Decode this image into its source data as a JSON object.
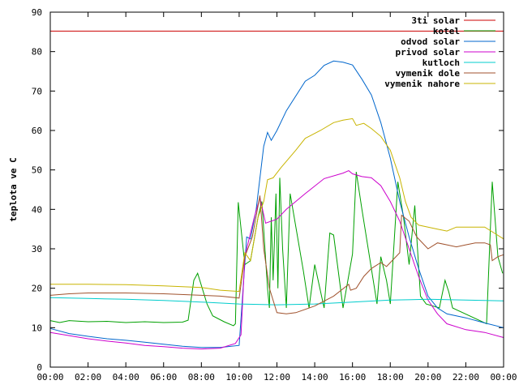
{
  "chart_data": {
    "type": "line",
    "title": "",
    "xlabel": "",
    "ylabel": "teplota ve C",
    "xlim": [
      0,
      24
    ],
    "ylim": [
      0,
      90
    ],
    "x_ticks": [
      0,
      2,
      4,
      6,
      8,
      10,
      12,
      14,
      16,
      18,
      20,
      22,
      24
    ],
    "x_tick_labels": [
      "00:00",
      "02:00",
      "04:00",
      "06:00",
      "08:00",
      "10:00",
      "12:00",
      "14:00",
      "16:00",
      "18:00",
      "20:00",
      "22:00",
      "00:00"
    ],
    "y_ticks": [
      0,
      10,
      20,
      30,
      40,
      50,
      60,
      70,
      80,
      90
    ],
    "y_tick_labels": [
      "0",
      "10",
      "20",
      "30",
      "40",
      "50",
      "60",
      "70",
      "80",
      "90"
    ],
    "grid": false,
    "legend": "top-right",
    "series": [
      {
        "name": "3ti solar",
        "color": "#cc0000",
        "points": [
          [
            0,
            85.2
          ],
          [
            24,
            85.2
          ]
        ]
      },
      {
        "name": "kotel",
        "color": "#00a000",
        "points": [
          [
            0,
            11.8
          ],
          [
            0.5,
            11.3
          ],
          [
            1,
            11.8
          ],
          [
            2,
            11.5
          ],
          [
            3,
            11.6
          ],
          [
            4,
            11.3
          ],
          [
            5,
            11.5
          ],
          [
            6,
            11.3
          ],
          [
            7,
            11.4
          ],
          [
            7.3,
            11.9
          ],
          [
            7.6,
            22
          ],
          [
            7.8,
            23.8
          ],
          [
            8.3,
            16
          ],
          [
            8.6,
            13
          ],
          [
            9.2,
            11.5
          ],
          [
            9.7,
            10.5
          ],
          [
            9.8,
            11
          ],
          [
            9.95,
            41.8
          ],
          [
            10.3,
            26
          ],
          [
            10.6,
            27
          ],
          [
            11,
            38
          ],
          [
            11.2,
            42
          ],
          [
            11.5,
            20
          ],
          [
            11.6,
            15
          ],
          [
            11.7,
            38
          ],
          [
            11.8,
            22
          ],
          [
            11.95,
            44
          ],
          [
            12.05,
            20
          ],
          [
            12.15,
            48
          ],
          [
            12.3,
            30
          ],
          [
            12.5,
            15
          ],
          [
            12.7,
            44
          ],
          [
            13.4,
            24.4
          ],
          [
            13.7,
            15
          ],
          [
            14,
            26
          ],
          [
            14.5,
            15
          ],
          [
            14.8,
            34
          ],
          [
            15,
            33.5
          ],
          [
            15.5,
            15
          ],
          [
            16,
            28.7
          ],
          [
            16.2,
            49.5
          ],
          [
            16.5,
            40
          ],
          [
            16.9,
            28
          ],
          [
            17.3,
            16
          ],
          [
            17.5,
            28
          ],
          [
            17.8,
            22
          ],
          [
            18,
            16
          ],
          [
            18.4,
            47
          ],
          [
            18.7,
            38
          ],
          [
            19,
            26
          ],
          [
            19.3,
            41
          ],
          [
            19.6,
            18
          ],
          [
            19.9,
            16
          ],
          [
            20.6,
            15
          ],
          [
            20.9,
            22
          ],
          [
            21.1,
            19
          ],
          [
            21.3,
            15
          ],
          [
            23.1,
            11
          ],
          [
            23.4,
            47
          ],
          [
            23.7,
            28
          ],
          [
            23.95,
            23.8
          ]
        ]
      },
      {
        "name": "odvod solar",
        "color": "#0066cc",
        "points": [
          [
            0,
            9.8
          ],
          [
            1,
            8.5
          ],
          [
            2,
            7.8
          ],
          [
            3,
            7.2
          ],
          [
            4,
            6.8
          ],
          [
            5,
            6.3
          ],
          [
            6,
            5.8
          ],
          [
            7,
            5.3
          ],
          [
            8,
            5.0
          ],
          [
            9,
            5.0
          ],
          [
            10,
            5.5
          ],
          [
            10.4,
            33
          ],
          [
            10.6,
            32.5
          ],
          [
            10.9,
            40
          ],
          [
            11.3,
            56
          ],
          [
            11.5,
            59.5
          ],
          [
            11.7,
            57.5
          ],
          [
            12,
            60
          ],
          [
            12.5,
            65
          ],
          [
            13.5,
            72.5
          ],
          [
            14,
            74
          ],
          [
            14.5,
            76.5
          ],
          [
            15,
            77.6
          ],
          [
            15.5,
            77.3
          ],
          [
            16,
            76.6
          ],
          [
            16.5,
            73
          ],
          [
            17,
            69
          ],
          [
            17.5,
            62
          ],
          [
            18,
            53
          ],
          [
            18.5,
            42
          ],
          [
            19,
            33
          ],
          [
            19.5,
            25
          ],
          [
            20,
            18
          ],
          [
            20.5,
            15
          ],
          [
            21,
            13.5
          ],
          [
            22,
            12.5
          ],
          [
            23,
            11.2
          ],
          [
            24,
            10
          ]
        ]
      },
      {
        "name": "privod solar",
        "color": "#cc00cc",
        "points": [
          [
            0,
            8.8
          ],
          [
            1,
            8
          ],
          [
            2,
            7.2
          ],
          [
            3,
            6.6
          ],
          [
            4,
            6.1
          ],
          [
            5,
            5.5
          ],
          [
            6,
            5.2
          ],
          [
            7,
            4.8
          ],
          [
            8,
            4.6
          ],
          [
            9,
            4.8
          ],
          [
            9.8,
            6
          ],
          [
            10.1,
            8.2
          ],
          [
            10.3,
            28
          ],
          [
            10.8,
            38
          ],
          [
            11.1,
            43
          ],
          [
            11.4,
            36.5
          ],
          [
            12,
            37.5
          ],
          [
            12.5,
            40
          ],
          [
            13.5,
            44
          ],
          [
            14.5,
            47.8
          ],
          [
            15.5,
            49.2
          ],
          [
            15.8,
            49.8
          ],
          [
            16,
            49
          ],
          [
            16.5,
            48.3
          ],
          [
            17,
            48
          ],
          [
            17.5,
            46
          ],
          [
            18,
            42
          ],
          [
            18.5,
            37
          ],
          [
            19,
            30
          ],
          [
            19.5,
            23
          ],
          [
            20,
            17
          ],
          [
            20.5,
            13.5
          ],
          [
            21,
            11
          ],
          [
            22,
            9.5
          ],
          [
            23,
            8.8
          ],
          [
            24,
            7.5
          ]
        ]
      },
      {
        "name": "kutloch",
        "color": "#00cccc",
        "points": [
          [
            0,
            17.6
          ],
          [
            2,
            17.4
          ],
          [
            4,
            17.2
          ],
          [
            6,
            16.9
          ],
          [
            8,
            16.5
          ],
          [
            10,
            16
          ],
          [
            12,
            15.8
          ],
          [
            14,
            16
          ],
          [
            16,
            16.5
          ],
          [
            18,
            17
          ],
          [
            20,
            17.2
          ],
          [
            22,
            17
          ],
          [
            24,
            16.8
          ]
        ]
      },
      {
        "name": "vymenik dole",
        "color": "#a0522d",
        "points": [
          [
            0,
            18.2
          ],
          [
            1,
            18.6
          ],
          [
            2,
            18.8
          ],
          [
            4,
            18.8
          ],
          [
            6,
            18.6
          ],
          [
            8,
            18.2
          ],
          [
            9,
            18
          ],
          [
            10,
            17.5
          ],
          [
            10.3,
            28
          ],
          [
            10.7,
            33
          ],
          [
            11.1,
            43.5
          ],
          [
            11.3,
            30
          ],
          [
            11.6,
            20
          ],
          [
            12,
            13.8
          ],
          [
            12.5,
            13.5
          ],
          [
            13,
            13.8
          ],
          [
            14,
            15.5
          ],
          [
            15,
            18
          ],
          [
            15.8,
            21
          ],
          [
            15.9,
            19.5
          ],
          [
            16.2,
            20
          ],
          [
            16.6,
            23
          ],
          [
            17,
            25
          ],
          [
            17.5,
            26.5
          ],
          [
            17.8,
            25.5
          ],
          [
            18.1,
            27
          ],
          [
            18.5,
            29
          ],
          [
            18.6,
            38.5
          ],
          [
            19,
            37
          ],
          [
            19.4,
            33
          ],
          [
            20,
            30
          ],
          [
            20.5,
            31.5
          ],
          [
            21,
            31
          ],
          [
            21.5,
            30.5
          ],
          [
            22,
            31
          ],
          [
            22.5,
            31.5
          ],
          [
            23,
            31.5
          ],
          [
            23.3,
            31
          ],
          [
            23.4,
            27
          ],
          [
            23.7,
            28
          ],
          [
            24,
            28.5
          ]
        ]
      },
      {
        "name": "vymenik nahore",
        "color": "#c8b400",
        "points": [
          [
            0,
            21
          ],
          [
            2,
            21
          ],
          [
            4,
            20.9
          ],
          [
            6,
            20.6
          ],
          [
            8,
            20.2
          ],
          [
            9,
            19.5
          ],
          [
            10,
            19.2
          ],
          [
            10.3,
            29
          ],
          [
            10.6,
            27
          ],
          [
            11,
            38
          ],
          [
            11.3,
            42
          ],
          [
            11.5,
            47.5
          ],
          [
            11.8,
            48
          ],
          [
            12.2,
            50.5
          ],
          [
            13,
            55
          ],
          [
            13.5,
            58
          ],
          [
            14.3,
            60
          ],
          [
            15,
            62
          ],
          [
            15.5,
            62.6
          ],
          [
            16,
            63
          ],
          [
            16.2,
            61.3
          ],
          [
            16.6,
            61.8
          ],
          [
            17,
            60.5
          ],
          [
            17.5,
            58.5
          ],
          [
            18,
            55
          ],
          [
            18.5,
            48
          ],
          [
            18.8,
            42
          ],
          [
            19.1,
            38
          ],
          [
            19.5,
            36
          ],
          [
            20,
            35.5
          ],
          [
            20.5,
            35
          ],
          [
            21,
            34.5
          ],
          [
            21.5,
            35.5
          ],
          [
            22,
            35.5
          ],
          [
            23,
            35.5
          ],
          [
            23.5,
            34
          ],
          [
            24,
            32.5
          ]
        ]
      }
    ]
  }
}
